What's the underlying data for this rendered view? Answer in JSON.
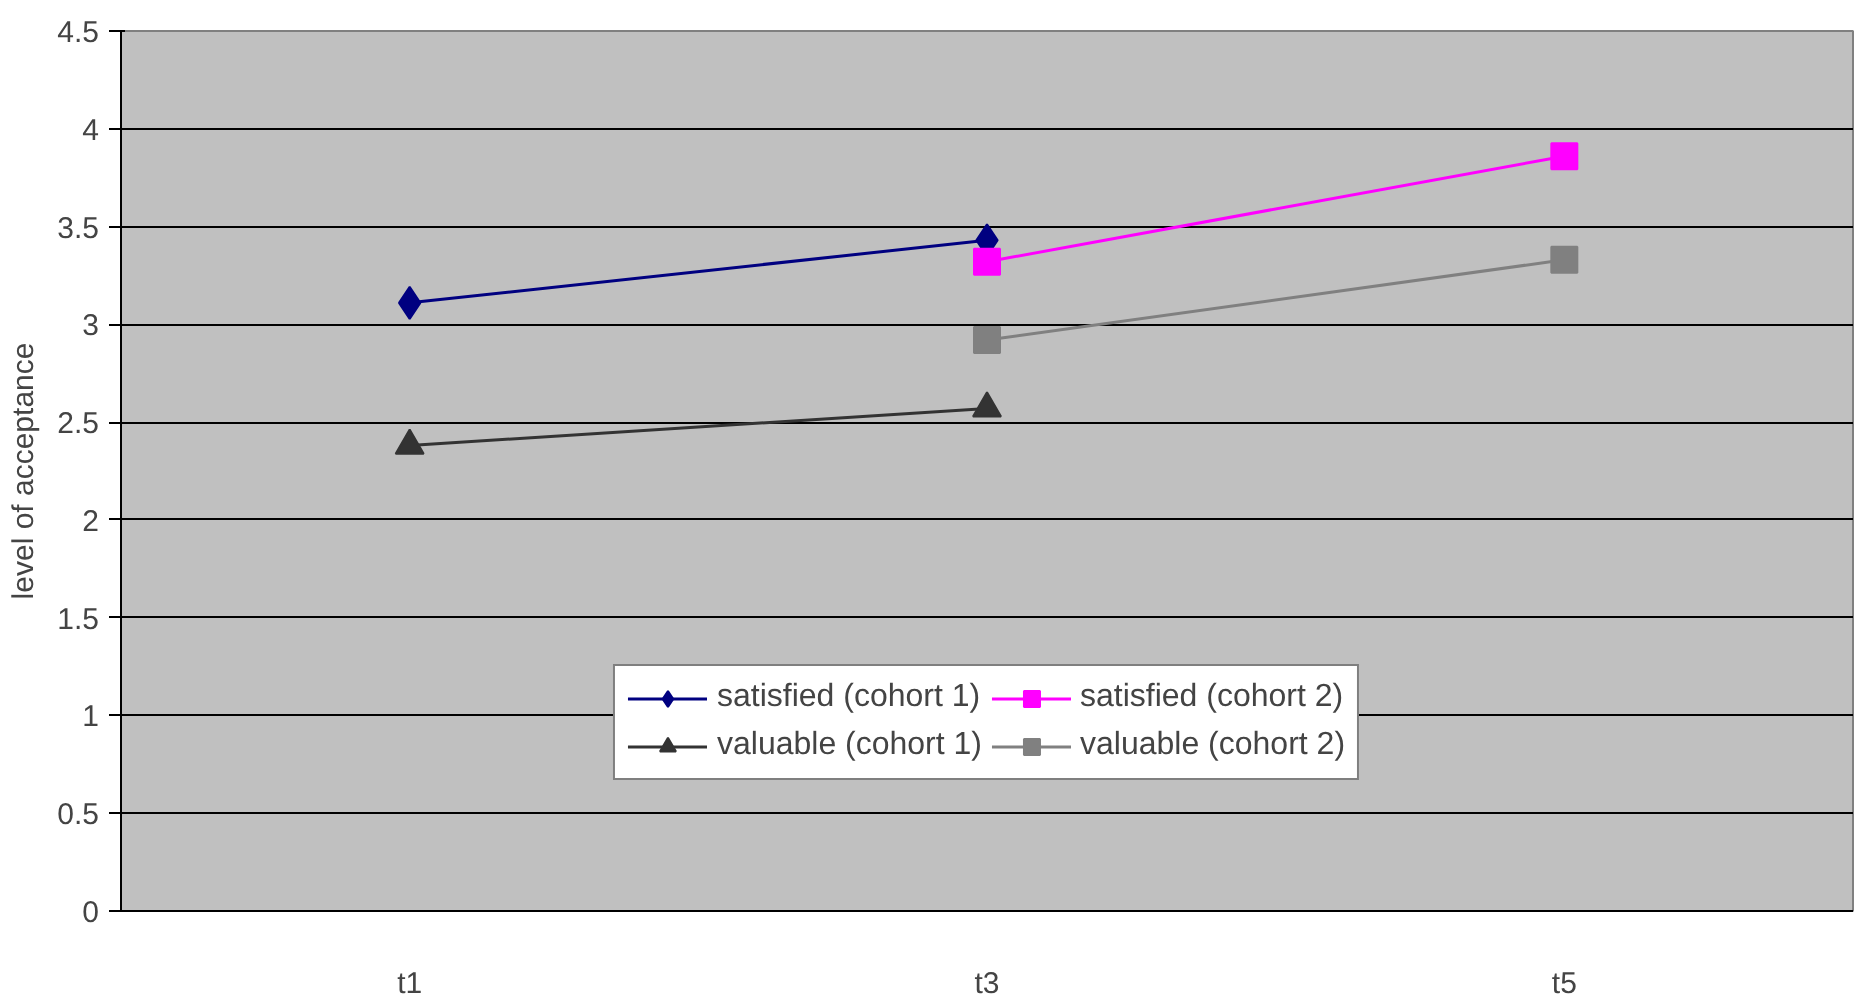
{
  "chart_data": {
    "type": "line",
    "ylabel": "level of acceptance",
    "categories": [
      "t1",
      "t3",
      "t5"
    ],
    "ylim": [
      0,
      4.5
    ],
    "yticks": [
      0,
      0.5,
      1,
      1.5,
      2,
      2.5,
      3,
      3.5,
      4,
      4.5
    ],
    "grid": "y",
    "legend": "bottom",
    "series": [
      {
        "name": "satisfied (cohort 1)",
        "color": "#000080",
        "marker": "diamond",
        "values": [
          3.11,
          3.43,
          null
        ]
      },
      {
        "name": "satisfied (cohort 2)",
        "color": "#ff00ff",
        "marker": "square",
        "values": [
          null,
          3.32,
          3.86
        ]
      },
      {
        "name": "valuable (cohort 1)",
        "color": "#333333",
        "marker": "triangle",
        "values": [
          2.38,
          2.57,
          null
        ]
      },
      {
        "name": "valuable (cohort 2)",
        "color": "#808080",
        "marker": "square",
        "values": [
          null,
          2.92,
          3.33
        ]
      }
    ]
  }
}
